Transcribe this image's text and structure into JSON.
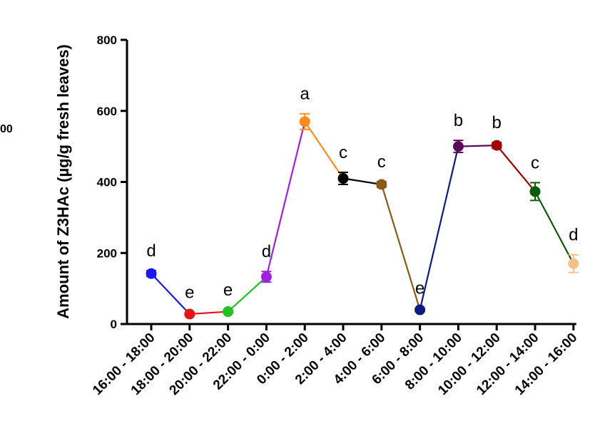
{
  "stray_text": "00",
  "chart_data": {
    "type": "line",
    "title": "",
    "ylabel": "Amount of Z3HAc (µg/g fresh leaves)",
    "xlabel": "",
    "ylim": [
      0,
      800
    ],
    "yticks": [
      0,
      200,
      400,
      600,
      800
    ],
    "grid": false,
    "categories": [
      "16:00 - 18:00",
      "18:00 - 20:00",
      "20:00 - 22:00",
      "22:00 - 0:00",
      "0:00 - 2:00",
      "2:00 - 4:00",
      "4:00 - 6:00",
      "6:00 - 8:00",
      "8:00 - 10:00",
      "10:00 - 12:00",
      "12:00 - 14:00",
      "14:00 - 16:00"
    ],
    "values": [
      142,
      28,
      35,
      133,
      570,
      410,
      393,
      40,
      500,
      503,
      373,
      170
    ],
    "errors": [
      8,
      5,
      5,
      15,
      22,
      17,
      8,
      5,
      17,
      8,
      25,
      25
    ],
    "significance": [
      "d",
      "e",
      "e",
      "d",
      "a",
      "c",
      "c",
      "e",
      "b",
      "b",
      "c",
      "d"
    ],
    "colors": [
      "#1a1aee",
      "#e81515",
      "#22c022",
      "#a020e0",
      "#ff8c1a",
      "#000000",
      "#8b5a1a",
      "#0d1a80",
      "#5a0a5a",
      "#a00000",
      "#0a5a0a",
      "#f5c08a"
    ]
  }
}
